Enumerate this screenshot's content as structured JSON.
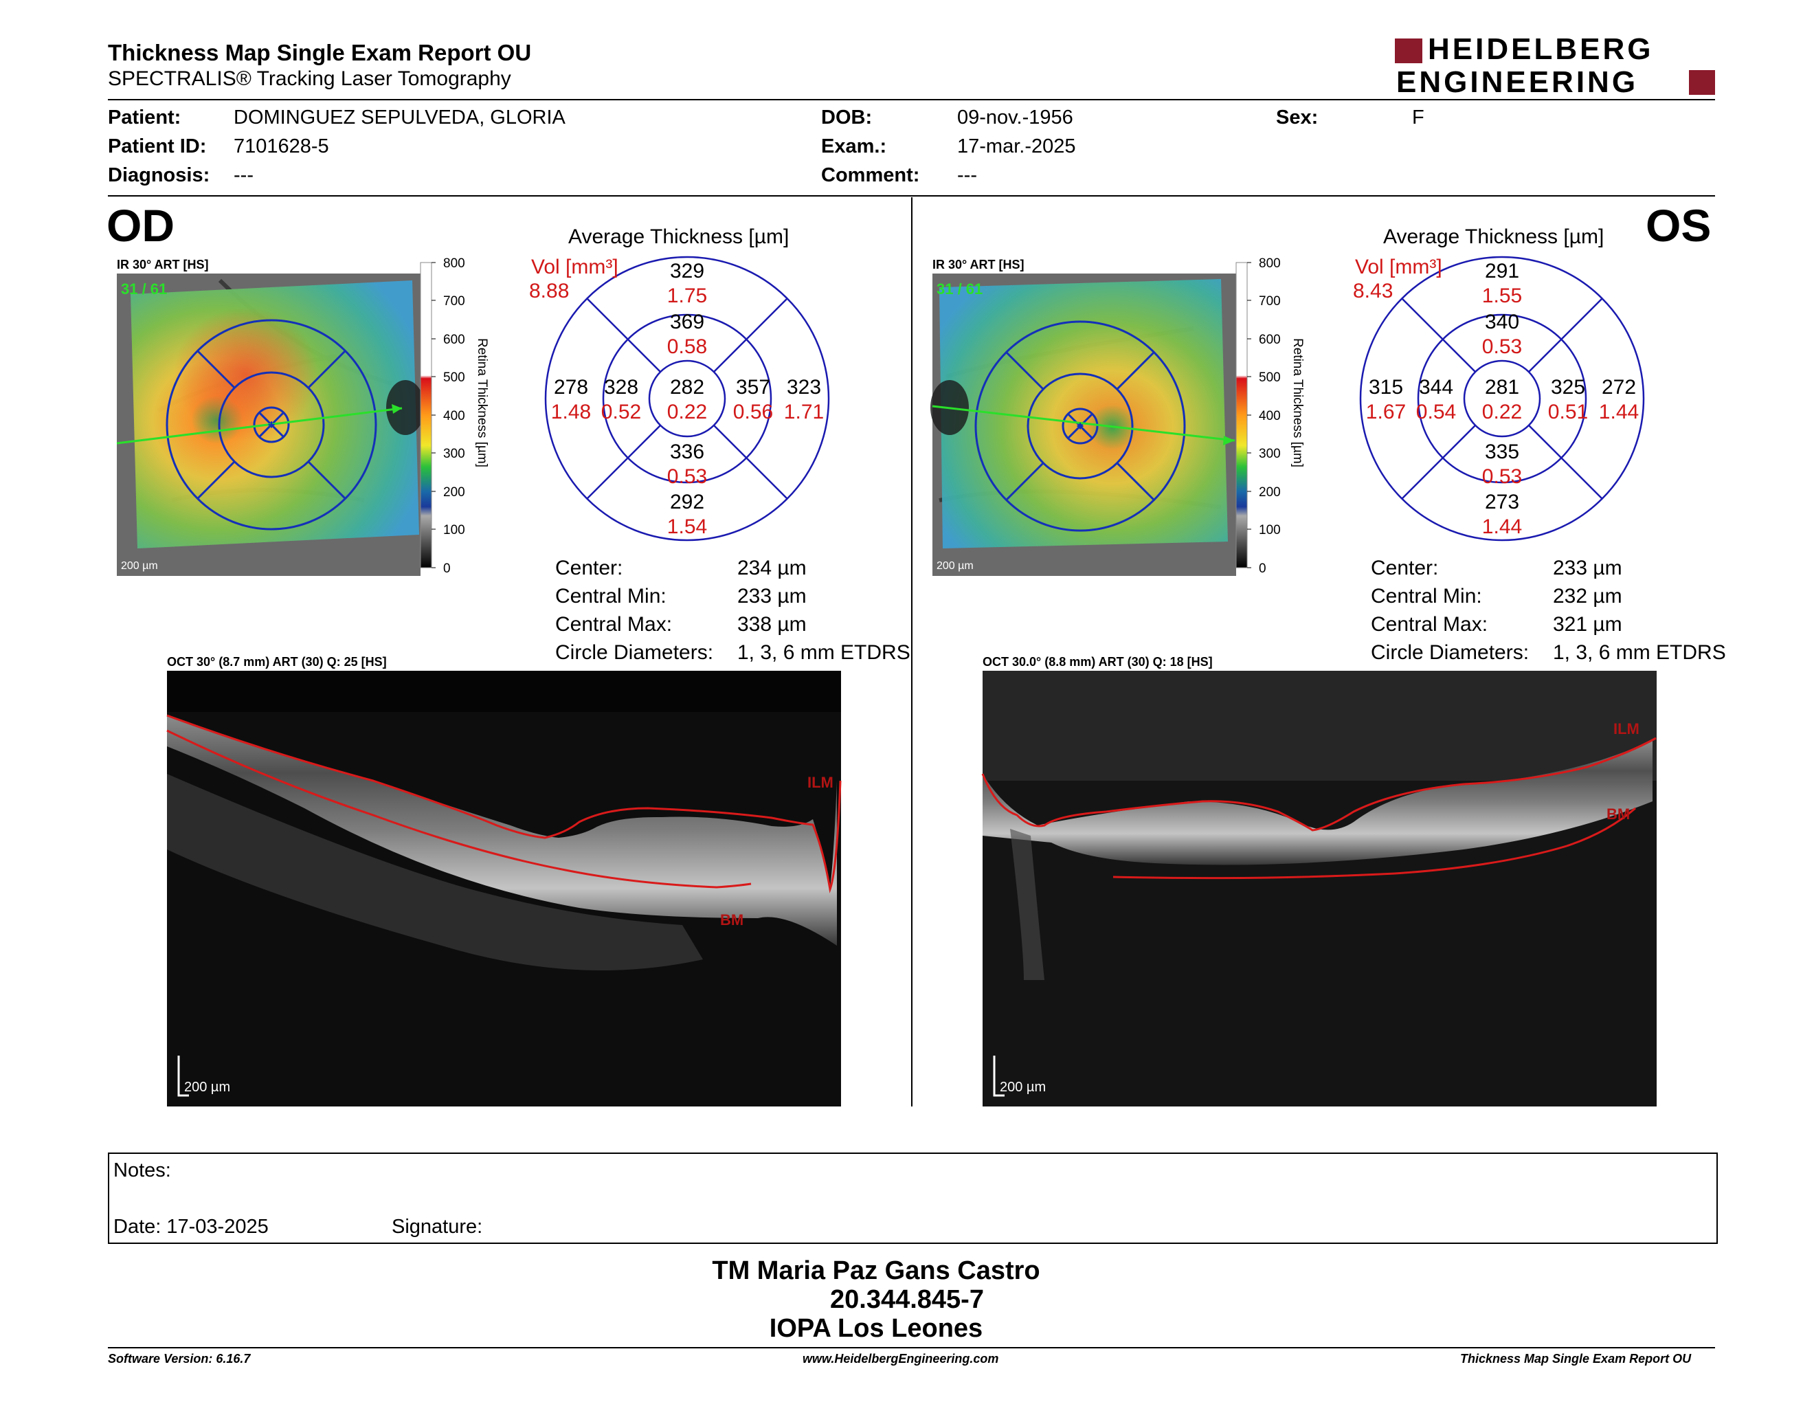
{
  "header": {
    "title": "Thickness Map Single Exam Report OU",
    "subtitle": "SPECTRALIS® Tracking Laser Tomography",
    "logo_line1": "HEIDELBERG",
    "logo_line2": "ENGINEERING",
    "brand_color": "#8b1a2b"
  },
  "patient": {
    "patient_label": "Patient:",
    "patient_value": "DOMINGUEZ SEPULVEDA, GLORIA",
    "id_label": "Patient ID:",
    "id_value": "7101628-5",
    "diagnosis_label": "Diagnosis:",
    "diagnosis_value": "---",
    "dob_label": "DOB:",
    "dob_value": "09-nov.-1956",
    "exam_label": "Exam.:",
    "exam_value": "17-mar.-2025",
    "comment_label": "Comment:",
    "comment_value": "---",
    "sex_label": "Sex:",
    "sex_value": "F"
  },
  "od": {
    "eye": "OD",
    "ir_title": "IR 30° ART [HS]",
    "frame_counter": "31 / 61",
    "scale": "200 µm",
    "colorbar_ticks": [
      "800",
      "700",
      "600",
      "500",
      "400",
      "300",
      "200",
      "100",
      "0"
    ],
    "colorbar_label": "Retina Thickness [µm]",
    "avg_title": "Average Thickness [µm]",
    "vol_label": "Vol [mm³]",
    "vol_value": "8.88",
    "etdrs": {
      "sup_outer": [
        "329",
        "1.75"
      ],
      "sup_inner": [
        "369",
        "0.58"
      ],
      "temp_outer": [
        "278",
        "1.48"
      ],
      "temp_inner": [
        "328",
        "0.52"
      ],
      "center": [
        "282",
        "0.22"
      ],
      "nasal_inner": [
        "357",
        "0.56"
      ],
      "nasal_outer": [
        "323",
        "1.71"
      ],
      "inf_inner": [
        "336",
        "0.53"
      ],
      "inf_outer": [
        "292",
        "1.54"
      ]
    },
    "stats": [
      {
        "label": "Center:",
        "value": "234 µm"
      },
      {
        "label": "Central Min:",
        "value": "233 µm"
      },
      {
        "label": "Central Max:",
        "value": "338 µm"
      },
      {
        "label": "Circle Diameters:",
        "value": "1, 3, 6 mm ETDRS"
      }
    ],
    "oct_title": "OCT 30° (8.7 mm) ART (30) Q: 25 [HS]",
    "oct_scale": "200 µm",
    "ilm": "ILM",
    "bm": "BM"
  },
  "os": {
    "eye": "OS",
    "ir_title": "IR 30° ART [HS]",
    "frame_counter": "31 / 61",
    "scale": "200 µm",
    "colorbar_ticks": [
      "800",
      "700",
      "600",
      "500",
      "400",
      "300",
      "200",
      "100",
      "0"
    ],
    "colorbar_label": "Retina Thickness [µm]",
    "avg_title": "Average Thickness [µm]",
    "vol_label": "Vol [mm³]",
    "vol_value": "8.43",
    "etdrs": {
      "sup_outer": [
        "291",
        "1.55"
      ],
      "sup_inner": [
        "340",
        "0.53"
      ],
      "temp_outer": [
        "315",
        "1.67"
      ],
      "temp_inner": [
        "344",
        "0.54"
      ],
      "center": [
        "281",
        "0.22"
      ],
      "nasal_inner": [
        "325",
        "0.51"
      ],
      "nasal_outer": [
        "272",
        "1.44"
      ],
      "inf_inner": [
        "335",
        "0.53"
      ],
      "inf_outer": [
        "273",
        "1.44"
      ]
    },
    "stats": [
      {
        "label": "Center:",
        "value": "233 µm"
      },
      {
        "label": "Central Min:",
        "value": "232 µm"
      },
      {
        "label": "Central Max:",
        "value": "321 µm"
      },
      {
        "label": "Circle Diameters:",
        "value": "1, 3, 6 mm ETDRS"
      }
    ],
    "oct_title": "OCT 30.0° (8.8 mm) ART (30) Q: 18 [HS]",
    "oct_scale": "200 µm",
    "ilm": "ILM",
    "bm": "BM"
  },
  "notes": {
    "notes_label": "Notes:",
    "date_label": "Date: 17-03-2025",
    "signature_label": "Signature:"
  },
  "signature_block": {
    "name": "TM Maria Paz Gans Castro",
    "rut": "20.344.845-7",
    "institution": "IOPA Los Leones"
  },
  "footer": {
    "software": "Software Version: 6.16.7",
    "website": "www.HeidelbergEngineering.com",
    "report": "Thickness Map Single Exam Report OU"
  }
}
